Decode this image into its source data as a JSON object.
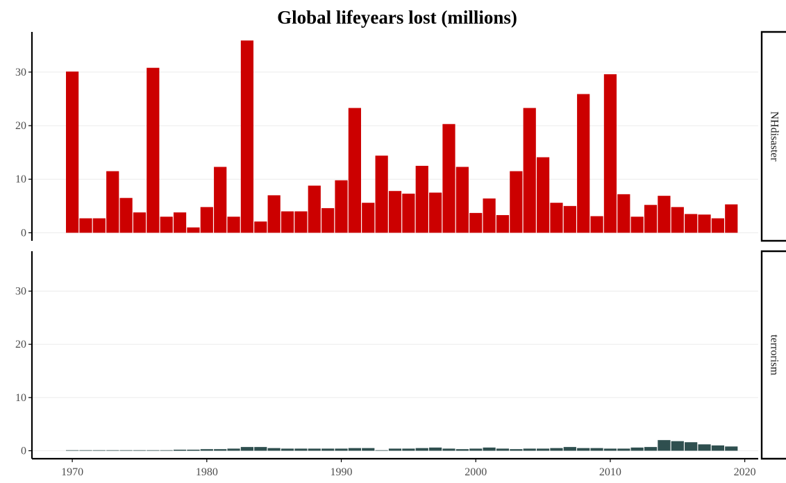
{
  "chart_data": {
    "type": "bar",
    "title": "Global lifeyears lost (millions)",
    "xlabel": "",
    "ylabel": "",
    "x": [
      1970,
      1971,
      1972,
      1973,
      1974,
      1975,
      1976,
      1977,
      1978,
      1979,
      1980,
      1981,
      1982,
      1983,
      1984,
      1985,
      1986,
      1987,
      1988,
      1989,
      1990,
      1991,
      1992,
      1993,
      1994,
      1995,
      1996,
      1997,
      1998,
      1999,
      2000,
      2001,
      2002,
      2003,
      2004,
      2005,
      2006,
      2007,
      2008,
      2009,
      2010,
      2011,
      2012,
      2013,
      2014,
      2015,
      2016,
      2017,
      2018,
      2019
    ],
    "xlim": [
      1967,
      2021
    ],
    "x_ticks": [
      "1970",
      "1980",
      "1990",
      "2000",
      "2010",
      "2020"
    ],
    "ylim": [
      -1.5,
      37.5
    ],
    "y_ticks": [
      "0",
      "10",
      "20",
      "30"
    ],
    "grid": true,
    "facets": [
      {
        "name": "NHdisaster",
        "color": "#cc0000",
        "values": [
          30.1,
          2.7,
          2.7,
          11.5,
          6.5,
          3.8,
          30.8,
          3.0,
          3.8,
          1.0,
          4.8,
          12.3,
          3.0,
          35.9,
          2.1,
          7.0,
          4.0,
          4.0,
          8.8,
          4.6,
          9.8,
          23.3,
          5.6,
          14.4,
          7.8,
          7.3,
          12.5,
          7.5,
          20.3,
          12.3,
          3.7,
          6.4,
          3.3,
          11.5,
          23.3,
          14.1,
          5.6,
          5.0,
          25.9,
          3.1,
          29.6,
          7.2,
          3.0,
          5.2,
          6.9,
          4.8,
          3.5,
          3.4,
          2.7,
          5.3
        ]
      },
      {
        "name": "terrorism",
        "color": "#2f4f4f",
        "values": [
          0.1,
          0.1,
          0.1,
          0.1,
          0.1,
          0.1,
          0.1,
          0.1,
          0.2,
          0.2,
          0.3,
          0.3,
          0.4,
          0.7,
          0.7,
          0.5,
          0.4,
          0.4,
          0.4,
          0.4,
          0.4,
          0.5,
          0.5,
          0.1,
          0.4,
          0.4,
          0.5,
          0.6,
          0.4,
          0.3,
          0.4,
          0.6,
          0.4,
          0.3,
          0.4,
          0.4,
          0.5,
          0.7,
          0.5,
          0.5,
          0.4,
          0.4,
          0.6,
          0.7,
          2.0,
          1.8,
          1.6,
          1.2,
          1.0,
          0.8
        ]
      }
    ]
  }
}
